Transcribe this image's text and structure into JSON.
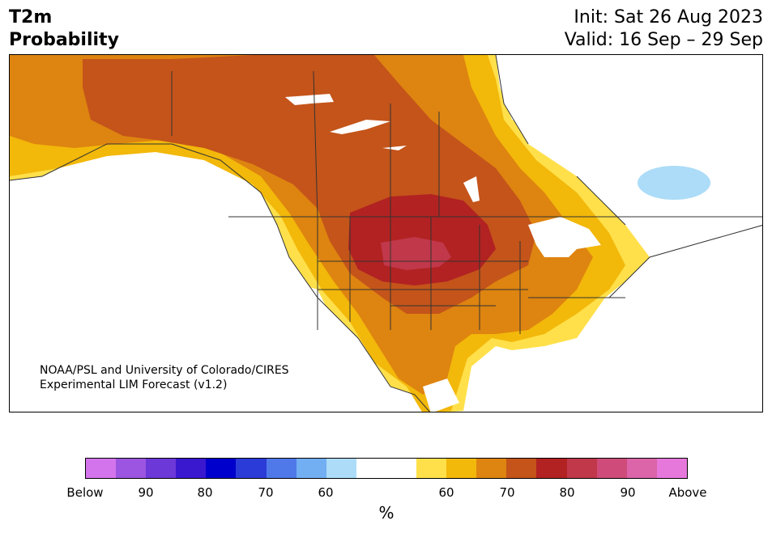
{
  "header": {
    "title_line1": "T2m",
    "title_line2": "Probability",
    "init": "Init: Sat 26 Aug 2023",
    "valid": "Valid: 16 Sep – 29 Sep"
  },
  "credit": {
    "line1": "NOAA/PSL and University of Colorado/CIRES",
    "line2": "Experimental LIM Forecast (v1.2)"
  },
  "colorbar": {
    "colors": [
      "#d474ec",
      "#9b55e0",
      "#6d38d8",
      "#3a18d0",
      "#0000cc",
      "#2a3bd8",
      "#4f78e8",
      "#72aef2",
      "#acdcf8",
      "#ffffff",
      "#ffffff",
      "#ffe04a",
      "#f2b80a",
      "#de8410",
      "#c4541a",
      "#b22222",
      "#c0384a",
      "#cf4c7a",
      "#dc64a8",
      "#e678dc"
    ],
    "ticks": [
      "Below",
      "90",
      "80",
      "70",
      "60",
      "60",
      "70",
      "80",
      "90",
      "Above"
    ],
    "unit": "%"
  },
  "map": {
    "region": "North America",
    "colors": {
      "ocean": "#ffffff",
      "p50_60": "#ffe04a",
      "p60_70": "#f2b80a",
      "p70_80": "#de8410",
      "p80_90": "#c4541a",
      "p90": "#b22222",
      "above": "#c0384a",
      "below_cool": "#acdcf8",
      "boundary": "#333333"
    }
  }
}
